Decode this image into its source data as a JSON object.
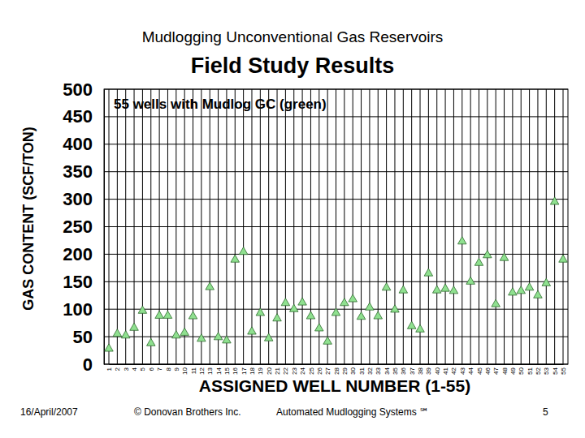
{
  "chart_data": {
    "type": "scatter",
    "title": "Mudlogging Unconventional Gas Reservoirs",
    "subtitle": "Field Study Results",
    "annotation": "55 wells with Mudlog GC (green)",
    "x_label": "ASSIGNED WELL NUMBER (1-55)",
    "y_label": "GAS CONTENT (SCF/TON)",
    "footer": [
      "16/April/2007",
      "© Donovan Brothers Inc.",
      "Automated Mudlogging Systems ℠",
      "5"
    ],
    "categories": [
      "1",
      "2",
      "3",
      "4",
      "5",
      "6",
      "7",
      "8",
      "9",
      "10",
      "11",
      "12",
      "13",
      "14",
      "15",
      "16",
      "17",
      "18",
      "19",
      "20",
      "21",
      "22",
      "23",
      "24",
      "25",
      "26",
      "27",
      "28",
      "29",
      "30",
      "31",
      "32",
      "33",
      "34",
      "35",
      "36",
      "37",
      "38",
      "39",
      "40",
      "41",
      "42",
      "43",
      "44",
      "45",
      "46",
      "47",
      "48",
      "49",
      "50",
      "51",
      "52",
      "53",
      "54",
      "55"
    ],
    "values": [
      28,
      55,
      52,
      66,
      97,
      38,
      88,
      88,
      52,
      57,
      87,
      46,
      140,
      49,
      43,
      190,
      204,
      59,
      93,
      47,
      83,
      111,
      100,
      112,
      87,
      65,
      41,
      93,
      111,
      118,
      86,
      103,
      87,
      139,
      99,
      134,
      69,
      63,
      165,
      134,
      137,
      133,
      223,
      150,
      184,
      198,
      109,
      193,
      130,
      133,
      139,
      125,
      147,
      295,
      190
    ],
    "color": "#8fe08f",
    "marker": "triangle",
    "ylim": [
      0,
      500
    ],
    "yticks": [
      0,
      50,
      100,
      150,
      200,
      250,
      300,
      350,
      400,
      450,
      500
    ],
    "grid": true
  }
}
